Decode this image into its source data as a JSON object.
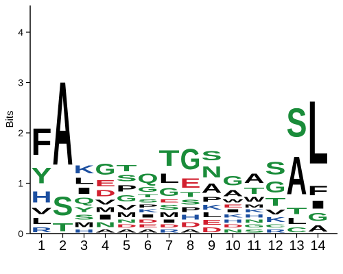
{
  "chart_data": {
    "type": "sequence-logo",
    "title": "",
    "xlabel": "",
    "ylabel": "Bits",
    "ylim": [
      0,
      4.5
    ],
    "y_ticks": [
      "0",
      "1",
      "2",
      "3",
      "4"
    ],
    "grid": false,
    "legend": "none",
    "colors": {
      "hydrophobic": "#000000",
      "polar": "#1a8c3a",
      "basic": "#1c4fa0",
      "acidic": "#d2202f"
    },
    "positions": [
      {
        "label": "1",
        "stack": [
          {
            "letter": "R",
            "bits": 0.15,
            "color": "basic"
          },
          {
            "letter": "L",
            "bits": 0.2,
            "color": "hydrophobic"
          },
          {
            "letter": "V",
            "bits": 0.2,
            "color": "hydrophobic"
          },
          {
            "letter": "H",
            "bits": 0.35,
            "color": "basic"
          },
          {
            "letter": "Y",
            "bits": 0.5,
            "color": "polar"
          },
          {
            "letter": "F",
            "bits": 0.85,
            "color": "hydrophobic"
          }
        ]
      },
      {
        "label": "2",
        "stack": [
          {
            "letter": "T",
            "bits": 0.25,
            "color": "polar"
          },
          {
            "letter": "S",
            "bits": 0.6,
            "color": "polar"
          },
          {
            "letter": "A",
            "bits": 2.65,
            "color": "hydrophobic"
          }
        ]
      },
      {
        "label": "3",
        "stack": [
          {
            "letter": "H",
            "bits": 0.1,
            "color": "basic"
          },
          {
            "letter": "M",
            "bits": 0.15,
            "color": "hydrophobic"
          },
          {
            "letter": "S",
            "bits": 0.15,
            "color": "polar"
          },
          {
            "letter": "Y",
            "bits": 0.15,
            "color": "polar"
          },
          {
            "letter": "Q",
            "bits": 0.2,
            "color": "polar"
          },
          {
            "letter": "I",
            "bits": 0.2,
            "color": "hydrophobic"
          },
          {
            "letter": "L",
            "bits": 0.2,
            "color": "hydrophobic"
          },
          {
            "letter": "K",
            "bits": 0.25,
            "color": "basic"
          }
        ]
      },
      {
        "label": "4",
        "stack": [
          {
            "letter": "A",
            "bits": 0.1,
            "color": "hydrophobic"
          },
          {
            "letter": "N",
            "bits": 0.15,
            "color": "polar"
          },
          {
            "letter": "I",
            "bits": 0.15,
            "color": "hydrophobic"
          },
          {
            "letter": "M",
            "bits": 0.15,
            "color": "hydrophobic"
          },
          {
            "letter": "V",
            "bits": 0.15,
            "color": "hydrophobic"
          },
          {
            "letter": "D",
            "bits": 0.2,
            "color": "acidic"
          },
          {
            "letter": "E",
            "bits": 0.2,
            "color": "acidic"
          },
          {
            "letter": "G",
            "bits": 0.35,
            "color": "polar"
          }
        ]
      },
      {
        "label": "5",
        "stack": [
          {
            "letter": "A",
            "bits": 0.1,
            "color": "hydrophobic"
          },
          {
            "letter": "D",
            "bits": 0.1,
            "color": "acidic"
          },
          {
            "letter": "N",
            "bits": 0.1,
            "color": "polar"
          },
          {
            "letter": "M",
            "bits": 0.15,
            "color": "hydrophobic"
          },
          {
            "letter": "V",
            "bits": 0.15,
            "color": "hydrophobic"
          },
          {
            "letter": "G",
            "bits": 0.2,
            "color": "polar"
          },
          {
            "letter": "P",
            "bits": 0.2,
            "color": "hydrophobic"
          },
          {
            "letter": "S",
            "bits": 0.2,
            "color": "polar"
          },
          {
            "letter": "T",
            "bits": 0.2,
            "color": "polar"
          }
        ]
      },
      {
        "label": "6",
        "stack": [
          {
            "letter": "A",
            "bits": 0.1,
            "color": "hydrophobic"
          },
          {
            "letter": "E",
            "bits": 0.1,
            "color": "acidic"
          },
          {
            "letter": "D",
            "bits": 0.1,
            "color": "acidic"
          },
          {
            "letter": "I",
            "bits": 0.1,
            "color": "hydrophobic"
          },
          {
            "letter": "K",
            "bits": 0.1,
            "color": "basic"
          },
          {
            "letter": "P",
            "bits": 0.1,
            "color": "hydrophobic"
          },
          {
            "letter": "S",
            "bits": 0.1,
            "color": "polar"
          },
          {
            "letter": "T",
            "bits": 0.1,
            "color": "polar"
          },
          {
            "letter": "G",
            "bits": 0.15,
            "color": "polar"
          },
          {
            "letter": "Q",
            "bits": 0.3,
            "color": "polar"
          }
        ]
      },
      {
        "label": "7",
        "stack": [
          {
            "letter": "R",
            "bits": 0.1,
            "color": "basic"
          },
          {
            "letter": "D",
            "bits": 0.1,
            "color": "acidic"
          },
          {
            "letter": "I",
            "bits": 0.1,
            "color": "hydrophobic"
          },
          {
            "letter": "M",
            "bits": 0.15,
            "color": "hydrophobic"
          },
          {
            "letter": "S",
            "bits": 0.15,
            "color": "polar"
          },
          {
            "letter": "E",
            "bits": 0.1,
            "color": "acidic"
          },
          {
            "letter": "G",
            "bits": 0.25,
            "color": "polar"
          },
          {
            "letter": "L",
            "bits": 0.3,
            "color": "hydrophobic"
          },
          {
            "letter": "T",
            "bits": 0.5,
            "color": "polar"
          }
        ]
      },
      {
        "label": "8",
        "stack": [
          {
            "letter": "A",
            "bits": 0.1,
            "color": "hydrophobic"
          },
          {
            "letter": "D",
            "bits": 0.15,
            "color": "acidic"
          },
          {
            "letter": "H",
            "bits": 0.15,
            "color": "basic"
          },
          {
            "letter": "P",
            "bits": 0.15,
            "color": "hydrophobic"
          },
          {
            "letter": "S",
            "bits": 0.15,
            "color": "polar"
          },
          {
            "letter": "T",
            "bits": 0.15,
            "color": "polar"
          },
          {
            "letter": "E",
            "bits": 0.3,
            "color": "acidic"
          },
          {
            "letter": "G",
            "bits": 0.65,
            "color": "polar"
          }
        ]
      },
      {
        "label": "9",
        "stack": [
          {
            "letter": "D",
            "bits": 0.15,
            "color": "acidic"
          },
          {
            "letter": "E",
            "bits": 0.15,
            "color": "acidic"
          },
          {
            "letter": "L",
            "bits": 0.15,
            "color": "hydrophobic"
          },
          {
            "letter": "K",
            "bits": 0.15,
            "color": "basic"
          },
          {
            "letter": "P",
            "bits": 0.15,
            "color": "hydrophobic"
          },
          {
            "letter": "A",
            "bits": 0.3,
            "color": "hydrophobic"
          },
          {
            "letter": "N",
            "bits": 0.35,
            "color": "polar"
          },
          {
            "letter": "S",
            "bits": 0.3,
            "color": "polar"
          }
        ]
      },
      {
        "label": "10",
        "stack": [
          {
            "letter": "N",
            "bits": 0.1,
            "color": "polar"
          },
          {
            "letter": "D",
            "bits": 0.1,
            "color": "acidic"
          },
          {
            "letter": "H",
            "bits": 0.1,
            "color": "basic"
          },
          {
            "letter": "K",
            "bits": 0.1,
            "color": "basic"
          },
          {
            "letter": "I",
            "bits": 0.1,
            "color": "hydrophobic"
          },
          {
            "letter": "E",
            "bits": 0.1,
            "color": "acidic"
          },
          {
            "letter": "W",
            "bits": 0.1,
            "color": "hydrophobic"
          },
          {
            "letter": "A",
            "bits": 0.2,
            "color": "hydrophobic"
          },
          {
            "letter": "G",
            "bits": 0.3,
            "color": "polar"
          }
        ]
      },
      {
        "label": "11",
        "stack": [
          {
            "letter": "S",
            "bits": 0.1,
            "color": "polar"
          },
          {
            "letter": "G",
            "bits": 0.1,
            "color": "polar"
          },
          {
            "letter": "N",
            "bits": 0.1,
            "color": "polar"
          },
          {
            "letter": "H",
            "bits": 0.1,
            "color": "basic"
          },
          {
            "letter": "K",
            "bits": 0.1,
            "color": "basic"
          },
          {
            "letter": "M",
            "bits": 0.1,
            "color": "hydrophobic"
          },
          {
            "letter": "W",
            "bits": 0.15,
            "color": "hydrophobic"
          },
          {
            "letter": "T",
            "bits": 0.2,
            "color": "polar"
          },
          {
            "letter": "A",
            "bits": 0.3,
            "color": "hydrophobic"
          }
        ]
      },
      {
        "label": "12",
        "stack": [
          {
            "letter": "R",
            "bits": 0.1,
            "color": "basic"
          },
          {
            "letter": "C",
            "bits": 0.1,
            "color": "polar"
          },
          {
            "letter": "K",
            "bits": 0.15,
            "color": "basic"
          },
          {
            "letter": "V",
            "bits": 0.15,
            "color": "hydrophobic"
          },
          {
            "letter": "T",
            "bits": 0.25,
            "color": "polar"
          },
          {
            "letter": "G",
            "bits": 0.35,
            "color": "polar"
          },
          {
            "letter": "S",
            "bits": 0.4,
            "color": "polar"
          }
        ]
      },
      {
        "label": "13",
        "stack": [
          {
            "letter": "C",
            "bits": 0.15,
            "color": "polar"
          },
          {
            "letter": "L",
            "bits": 0.2,
            "color": "hydrophobic"
          },
          {
            "letter": "T",
            "bits": 0.2,
            "color": "polar"
          },
          {
            "letter": "A",
            "bits": 1.2,
            "color": "hydrophobic"
          },
          {
            "letter": "S",
            "bits": 0.9,
            "color": "polar"
          }
        ]
      },
      {
        "label": "14",
        "stack": [
          {
            "letter": "A",
            "bits": 0.2,
            "color": "hydrophobic"
          },
          {
            "letter": "G",
            "bits": 0.25,
            "color": "polar"
          },
          {
            "letter": "I",
            "bits": 0.25,
            "color": "hydrophobic"
          },
          {
            "letter": "F",
            "bits": 0.3,
            "color": "hydrophobic"
          },
          {
            "letter": "L",
            "bits": 2.0,
            "color": "hydrophobic"
          }
        ]
      }
    ]
  }
}
